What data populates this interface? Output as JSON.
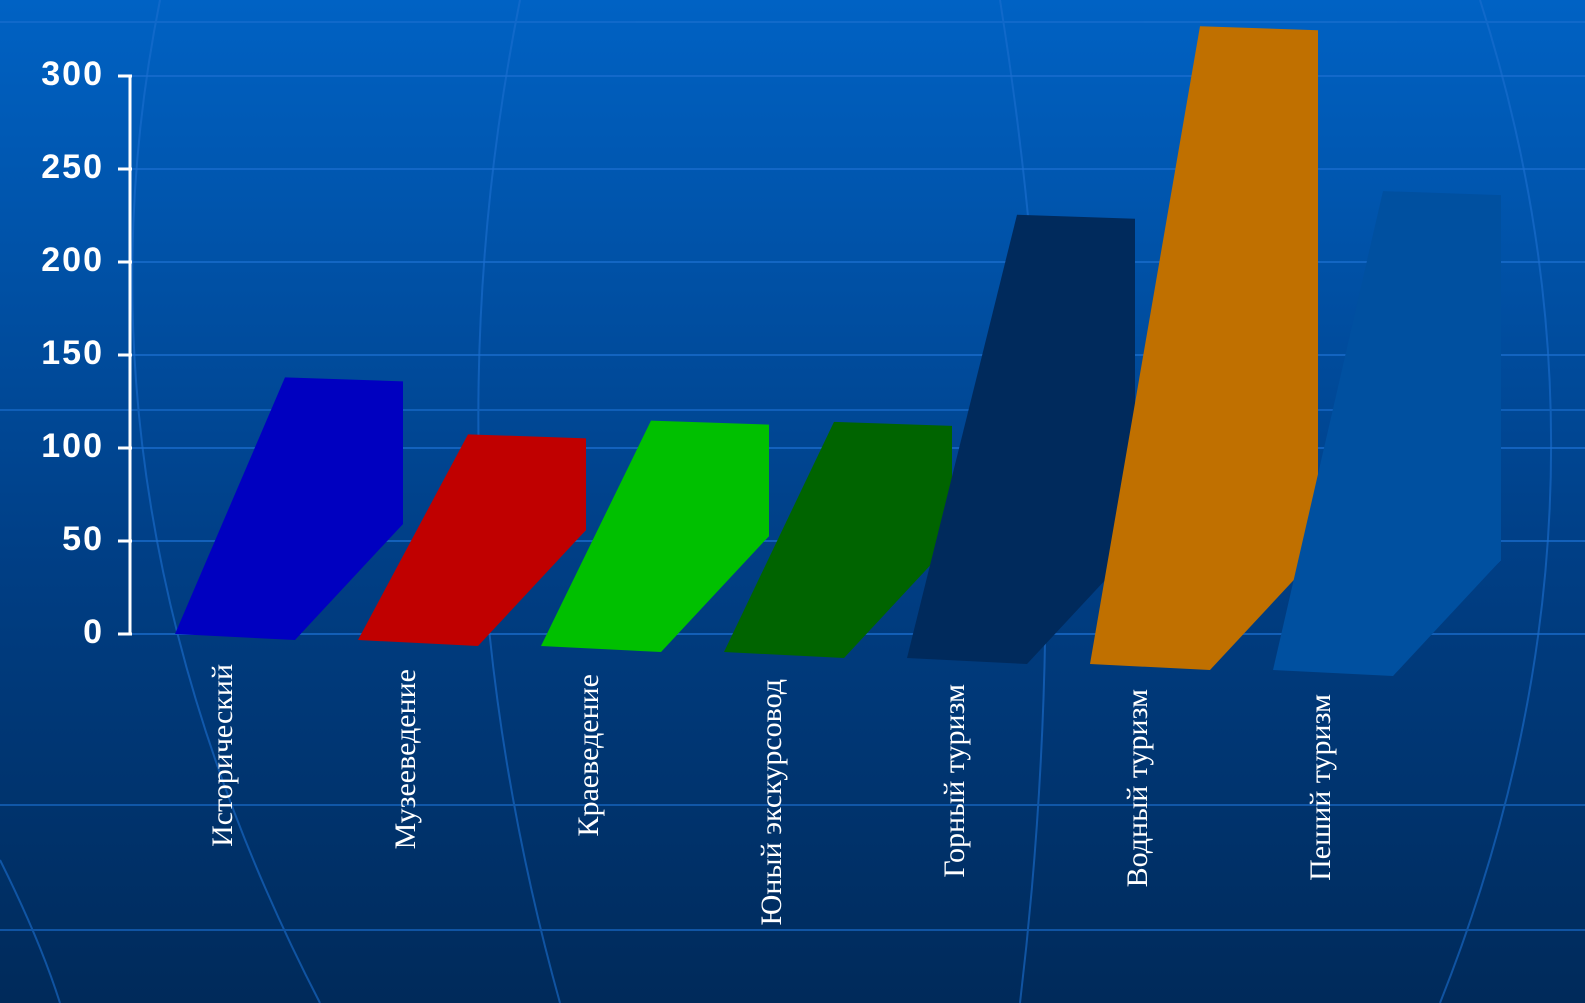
{
  "chart_data": {
    "type": "bar3d",
    "categories": [
      "Исторический",
      "Музееведение",
      "Краеведение",
      "Юный экскурсовод",
      "Горный туризм",
      "Водный туризм",
      "Пеший туризм"
    ],
    "values": [
      138,
      108,
      116,
      116,
      228,
      330,
      242
    ],
    "colors": [
      "#0000c0",
      "#c00000",
      "#00c000",
      "#006400",
      "#002a5c",
      "#c07000",
      "#0050a0"
    ],
    "ylim": [
      0,
      300
    ],
    "yticks": [
      0,
      50,
      100,
      150,
      200,
      250,
      300
    ],
    "grid": true
  }
}
